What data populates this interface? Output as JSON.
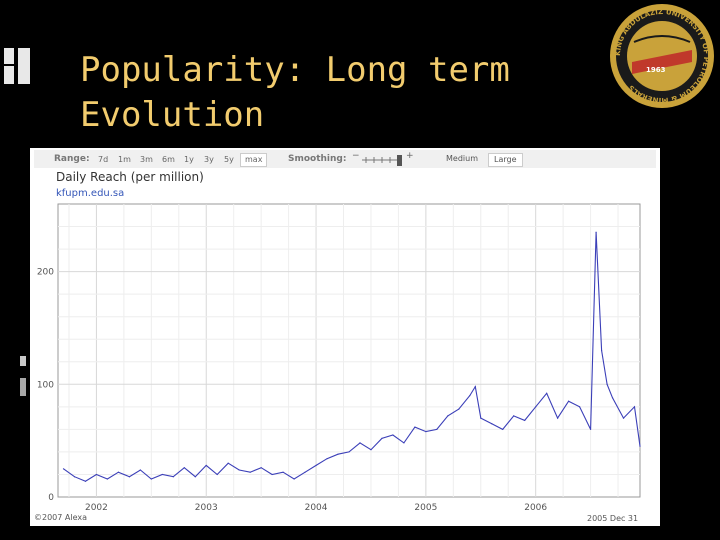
{
  "slide": {
    "title_line1": "Popularity: Long term",
    "title_line2": "Evolution"
  },
  "colors": {
    "background": "#000000",
    "title": "#f2cc6e",
    "line": "#3b3fb8",
    "logo_ring": "#c9a23a",
    "logo_band": "#c0392b"
  },
  "logo": {
    "icon": "university-seal-icon",
    "ring_text": "KING ABDULAZIZ UNIVERSITY OF PETROLEUM & MINERALS",
    "year": "1963"
  },
  "toolbar": {
    "range_label": "Range:",
    "ranges": [
      "7d",
      "1m",
      "3m",
      "6m",
      "1y",
      "3y",
      "5y",
      "max"
    ],
    "selected_range": "max",
    "smoothing_label": "Smoothing:",
    "smoothing_minus": "−",
    "smoothing_plus": "+",
    "sizes": [
      "Medium",
      "Large"
    ],
    "selected_size": "Large"
  },
  "chart_data": {
    "type": "line",
    "title": "Daily Reach (per million)",
    "subtitle": "kfupm.edu.sa",
    "x_ticks": [
      "2002",
      "2003",
      "2004",
      "2005",
      "2006"
    ],
    "y_ticks": [
      0,
      100,
      200
    ],
    "ylim": [
      0,
      260
    ],
    "xlim": [
      2001.65,
      2006.95
    ],
    "grid": true,
    "series": [
      {
        "x": [
          2001.7,
          2001.8,
          2001.9,
          2002.0,
          2002.1,
          2002.2,
          2002.3,
          2002.4,
          2002.5,
          2002.6,
          2002.7,
          2002.8,
          2002.9,
          2003.0,
          2003.1,
          2003.2,
          2003.3,
          2003.4,
          2003.5,
          2003.6,
          2003.7,
          2003.8,
          2003.9,
          2004.0,
          2004.1,
          2004.2,
          2004.3,
          2004.4,
          2004.5,
          2004.6,
          2004.7,
          2004.8,
          2004.9,
          2005.0,
          2005.1,
          2005.2,
          2005.3,
          2005.4,
          2005.45,
          2005.5,
          2005.6,
          2005.7,
          2005.8,
          2005.9,
          2006.0,
          2006.1,
          2006.2,
          2006.3,
          2006.4,
          2006.5,
          2006.55,
          2006.6,
          2006.65,
          2006.7,
          2006.8,
          2006.9,
          2006.95
        ],
        "y": [
          25,
          18,
          14,
          20,
          16,
          22,
          18,
          24,
          16,
          20,
          18,
          26,
          18,
          28,
          20,
          30,
          24,
          22,
          26,
          20,
          22,
          16,
          22,
          28,
          34,
          38,
          40,
          48,
          42,
          52,
          55,
          48,
          62,
          58,
          60,
          72,
          78,
          90,
          98,
          70,
          65,
          60,
          72,
          68,
          80,
          92,
          70,
          85,
          80,
          60,
          235,
          130,
          100,
          88,
          70,
          80,
          45
        ]
      }
    ]
  },
  "credits": {
    "left": "©2007 Alexa",
    "right": "2005 Dec 31"
  }
}
